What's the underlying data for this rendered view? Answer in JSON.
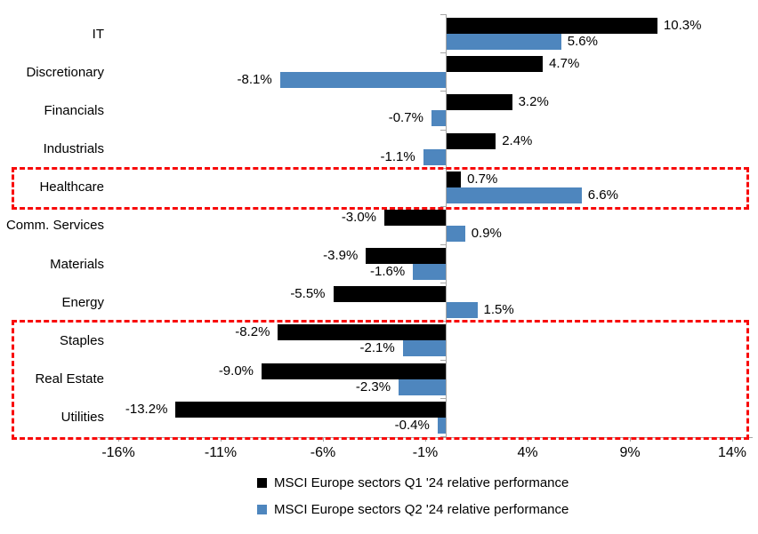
{
  "page": {
    "background": "#FFFFFF"
  },
  "chart_data": {
    "type": "bar",
    "orientation": "horizontal",
    "title": "",
    "categories": [
      "IT",
      "Discretionary",
      "Financials",
      "Industrials",
      "Healthcare",
      "Comm. Services",
      "Materials",
      "Energy",
      "Staples",
      "Real Estate",
      "Utilities"
    ],
    "series": [
      {
        "name": "MSCI Europe sectors Q1 '24 relative performance",
        "key": "q1",
        "color": "#000000",
        "values": [
          10.3,
          4.7,
          3.2,
          2.4,
          0.7,
          -3.0,
          -3.9,
          -5.5,
          -8.2,
          -9.0,
          -13.2
        ]
      },
      {
        "name": "MSCI Europe sectors Q2 '24 relative performance",
        "key": "q2",
        "color": "#4E86BE",
        "values": [
          5.6,
          -8.1,
          -0.7,
          -1.1,
          6.6,
          0.9,
          -1.6,
          1.5,
          -2.1,
          -2.3,
          -0.4
        ]
      }
    ],
    "value_labels_shown": true,
    "value_label_decimals": 1,
    "value_label_suffix": "%",
    "x_ticks": [
      {
        "value": -16,
        "label": "-16%"
      },
      {
        "value": -11,
        "label": "-11%"
      },
      {
        "value": -6,
        "label": "-6%"
      },
      {
        "value": -1,
        "label": "-1%"
      },
      {
        "value": 4,
        "label": "4%"
      },
      {
        "value": 9,
        "label": "9%"
      },
      {
        "value": 14,
        "label": "14%"
      }
    ],
    "xlim": [
      -17,
      15
    ],
    "grid": false,
    "axis_color": "#A6A6A6",
    "text_color": "#000000",
    "legend_position": "bottom-center",
    "highlights": [
      {
        "name": "healthcare-highlight",
        "categories": [
          "Healthcare"
        ],
        "start_row": 4,
        "end_row": 4,
        "color": "#F80A0A",
        "style": "dashed"
      },
      {
        "name": "defensives-highlight",
        "categories": [
          "Staples",
          "Real Estate",
          "Utilities"
        ],
        "start_row": 8,
        "end_row": 10,
        "color": "#F80A0A",
        "style": "dashed"
      }
    ]
  }
}
